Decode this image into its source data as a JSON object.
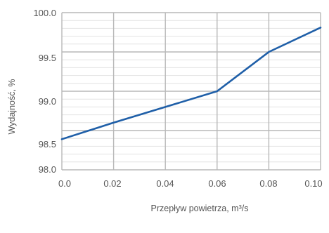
{
  "chart_data": {
    "type": "line",
    "title": "",
    "xlabel": "Przepływ powietrza, m³/s",
    "ylabel": "Wydajność, %",
    "xlim": [
      0.0,
      0.1
    ],
    "ylim": [
      98.0,
      100.0
    ],
    "x_ticks": [
      "0.0",
      "0.02",
      "0.04",
      "0.06",
      "0.08",
      "0.10"
    ],
    "y_ticks": [
      "100.0",
      "99.5",
      "99.0",
      "98.5",
      "98.0"
    ],
    "grid": true,
    "legend": "none",
    "series": [
      {
        "color": "#1f5fa8",
        "x": [
          0.0,
          0.02,
          0.04,
          0.06,
          0.08,
          0.1
        ],
        "y": [
          98.39,
          98.6,
          98.8,
          99.0,
          99.5,
          99.81
        ]
      }
    ]
  }
}
